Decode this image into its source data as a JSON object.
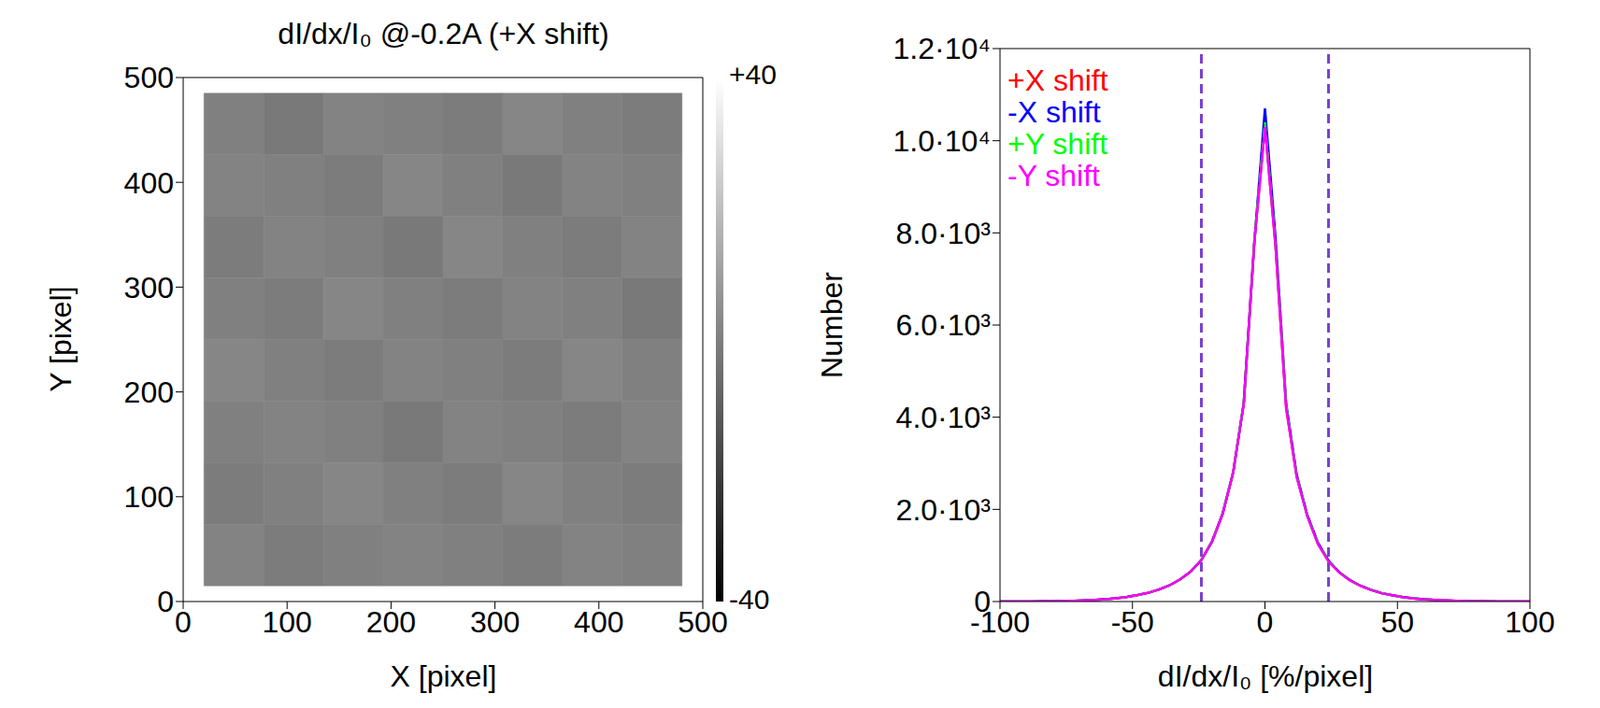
{
  "chart_data": [
    {
      "type": "heatmap",
      "title": "dI/dx/I₀ @-0.2A (+X shift)",
      "x_label": "X [pixel]",
      "y_label": "Y [pixel]",
      "xlim": [
        0,
        500
      ],
      "xticks": [
        0,
        100,
        200,
        300,
        400,
        500
      ],
      "ylim": [
        0,
        500
      ],
      "yticks": [
        0,
        100,
        200,
        300,
        400,
        500
      ],
      "image_extent": {
        "x": [
          20,
          480
        ],
        "y": [
          15,
          485
        ]
      },
      "cells": [
        [
          0,
          -2,
          1,
          0,
          -1,
          2,
          0,
          -1
        ],
        [
          1,
          0,
          -1,
          2,
          0,
          -2,
          1,
          0
        ],
        [
          -1,
          1,
          0,
          -2,
          2,
          0,
          -1,
          1
        ],
        [
          0,
          -1,
          2,
          0,
          -1,
          1,
          0,
          -2
        ],
        [
          2,
          0,
          -1,
          1,
          0,
          -1,
          2,
          0
        ],
        [
          0,
          1,
          0,
          -2,
          1,
          0,
          -1,
          1
        ],
        [
          -1,
          0,
          2,
          0,
          -1,
          2,
          0,
          -1
        ],
        [
          1,
          -1,
          0,
          1,
          0,
          -1,
          1,
          0
        ]
      ],
      "colorbar": {
        "range": [
          -40,
          40
        ],
        "ticks": [
          {
            "value": 40,
            "label": "+40"
          },
          {
            "value": -40,
            "label": "-40"
          }
        ]
      }
    },
    {
      "type": "line",
      "x_label": "dI/dx/I₀ [%/pixel]",
      "y_label": "Number",
      "xlim": [
        -100,
        100
      ],
      "xticks": [
        -100,
        -50,
        0,
        50,
        100
      ],
      "ylim": [
        0,
        12000
      ],
      "yticks": [
        {
          "value": 0,
          "label": "0"
        },
        {
          "value": 2000,
          "label": "2.0·10³"
        },
        {
          "value": 4000,
          "label": "4.0·10³"
        },
        {
          "value": 6000,
          "label": "6.0·10³"
        },
        {
          "value": 8000,
          "label": "8.0·10³"
        },
        {
          "value": 10000,
          "label": "1.0·10⁴"
        },
        {
          "value": 12000,
          "label": "1.2·10⁴"
        }
      ],
      "legend": "top-left",
      "reference_lines": {
        "x": [
          -24,
          24
        ],
        "color": "#7a40d0",
        "line_style": "dashed"
      },
      "x": [
        -100,
        -96,
        -92,
        -88,
        -84,
        -80,
        -76,
        -72,
        -68,
        -64,
        -60,
        -56,
        -52,
        -48,
        -44,
        -40,
        -36,
        -32,
        -28,
        -24,
        -20,
        -16,
        -12,
        -8,
        -4,
        0,
        4,
        8,
        12,
        16,
        20,
        24,
        28,
        32,
        36,
        40,
        44,
        48,
        52,
        56,
        60,
        64,
        68,
        72,
        76,
        80,
        84,
        88,
        92,
        96,
        100
      ],
      "series": [
        {
          "name": "+X shift",
          "color": "#ff0000",
          "line_style": "solid",
          "values": [
            0,
            1,
            1,
            2,
            4,
            6,
            10,
            15,
            25,
            35,
            50,
            70,
            100,
            140,
            190,
            260,
            350,
            480,
            650,
            900,
            1300,
            1900,
            2800,
            4300,
            7800,
            10300,
            7700,
            4200,
            2700,
            1850,
            1250,
            870,
            630,
            460,
            340,
            250,
            180,
            135,
            95,
            68,
            48,
            33,
            23,
            14,
            9,
            6,
            4,
            2,
            1,
            1,
            0
          ]
        },
        {
          "name": "-X shift",
          "color": "#0000ff",
          "line_style": "solid",
          "values": [
            0,
            1,
            1,
            2,
            4,
            6,
            10,
            15,
            25,
            35,
            50,
            70,
            100,
            140,
            190,
            260,
            350,
            480,
            650,
            900,
            1300,
            1900,
            2800,
            4300,
            7800,
            10700,
            7900,
            4300,
            2750,
            1880,
            1280,
            890,
            640,
            470,
            345,
            255,
            185,
            138,
            97,
            70,
            49,
            34,
            24,
            15,
            10,
            6,
            4,
            2,
            1,
            1,
            0
          ]
        },
        {
          "name": "+Y shift",
          "color": "#00ff00",
          "line_style": "dashed",
          "values": [
            0,
            1,
            1,
            2,
            4,
            6,
            10,
            16,
            26,
            36,
            52,
            72,
            102,
            142,
            192,
            262,
            352,
            482,
            655,
            905,
            1310,
            1910,
            2820,
            4320,
            7850,
            10400,
            7750,
            4250,
            2720,
            1860,
            1260,
            880,
            635,
            465,
            342,
            252,
            182,
            136,
            96,
            69,
            48,
            33,
            23,
            14,
            9,
            6,
            4,
            2,
            1,
            1,
            0
          ]
        },
        {
          "name": "-Y shift",
          "color": "#ff00ff",
          "line_style": "solid",
          "values": [
            0,
            1,
            1,
            2,
            4,
            6,
            10,
            15,
            25,
            35,
            50,
            70,
            100,
            140,
            190,
            260,
            350,
            480,
            650,
            900,
            1300,
            1900,
            2800,
            4300,
            7800,
            10300,
            7700,
            4200,
            2700,
            1850,
            1250,
            870,
            630,
            460,
            340,
            250,
            180,
            135,
            95,
            68,
            48,
            33,
            23,
            14,
            9,
            6,
            4,
            2,
            1,
            1,
            0
          ]
        }
      ]
    }
  ]
}
